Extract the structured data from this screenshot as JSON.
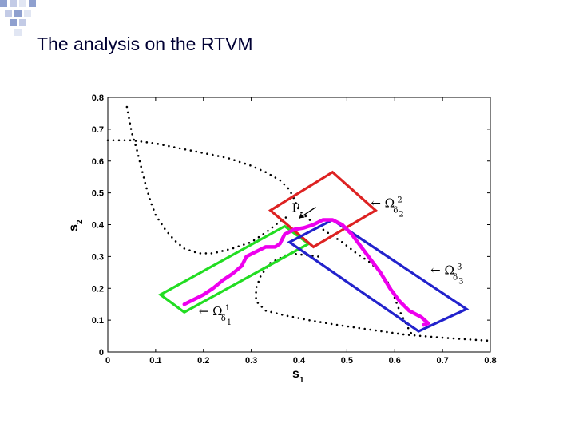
{
  "slide": {
    "title": "The analysis on the RTVM",
    "accent_colors": [
      "#8fa0cf",
      "#c3cbe6",
      "#e1e6f3"
    ]
  },
  "chart_data": {
    "type": "scatter",
    "xlabel": "s",
    "xlabel_sub": "1",
    "ylabel": "s",
    "ylabel_sub": "2",
    "xlim": [
      0,
      0.8
    ],
    "ylim": [
      0,
      0.8
    ],
    "xticks": [
      "0",
      "0.1",
      "0.2",
      "0.3",
      "0.4",
      "0.5",
      "0.6",
      "0.7",
      "0.8"
    ],
    "yticks": [
      "0",
      "0.1",
      "0.2",
      "0.3",
      "0.4",
      "0.5",
      "0.6",
      "0.7",
      "0.8"
    ],
    "grid": false,
    "dotted_curves": [
      {
        "color": "#000000",
        "points": [
          [
            0.04,
            0.77
          ],
          [
            0.045,
            0.73
          ],
          [
            0.05,
            0.69
          ],
          [
            0.06,
            0.64
          ],
          [
            0.07,
            0.58
          ],
          [
            0.08,
            0.52
          ],
          [
            0.09,
            0.47
          ],
          [
            0.1,
            0.43
          ],
          [
            0.12,
            0.385
          ],
          [
            0.14,
            0.35
          ],
          [
            0.16,
            0.325
          ],
          [
            0.19,
            0.31
          ],
          [
            0.22,
            0.31
          ],
          [
            0.26,
            0.325
          ],
          [
            0.3,
            0.345
          ],
          [
            0.33,
            0.375
          ],
          [
            0.36,
            0.41
          ],
          [
            0.38,
            0.43
          ]
        ]
      },
      {
        "color": "#000000",
        "points": [
          [
            0.0,
            0.665
          ],
          [
            0.05,
            0.665
          ],
          [
            0.1,
            0.655
          ],
          [
            0.15,
            0.64
          ],
          [
            0.2,
            0.625
          ],
          [
            0.25,
            0.61
          ],
          [
            0.3,
            0.585
          ],
          [
            0.33,
            0.565
          ],
          [
            0.36,
            0.54
          ],
          [
            0.38,
            0.51
          ],
          [
            0.39,
            0.48
          ],
          [
            0.4,
            0.445
          ],
          [
            0.43,
            0.405
          ],
          [
            0.46,
            0.375
          ],
          [
            0.49,
            0.345
          ],
          [
            0.52,
            0.31
          ],
          [
            0.55,
            0.28
          ],
          [
            0.57,
            0.25
          ],
          [
            0.59,
            0.21
          ],
          [
            0.6,
            0.17
          ],
          [
            0.61,
            0.13
          ],
          [
            0.62,
            0.1
          ],
          [
            0.63,
            0.07
          ],
          [
            0.64,
            0.045
          ]
        ]
      },
      {
        "color": "#000000",
        "points": [
          [
            0.44,
            0.3
          ],
          [
            0.38,
            0.31
          ],
          [
            0.34,
            0.28
          ],
          [
            0.32,
            0.24
          ],
          [
            0.31,
            0.2
          ],
          [
            0.31,
            0.16
          ],
          [
            0.33,
            0.13
          ],
          [
            0.37,
            0.115
          ],
          [
            0.42,
            0.1
          ],
          [
            0.48,
            0.085
          ],
          [
            0.55,
            0.07
          ],
          [
            0.62,
            0.055
          ],
          [
            0.7,
            0.045
          ],
          [
            0.8,
            0.035
          ]
        ]
      }
    ],
    "magenta_trajectory": {
      "color": "#ee00ee",
      "points": [
        [
          0.16,
          0.15
        ],
        [
          0.18,
          0.165
        ],
        [
          0.2,
          0.18
        ],
        [
          0.22,
          0.2
        ],
        [
          0.24,
          0.225
        ],
        [
          0.26,
          0.245
        ],
        [
          0.28,
          0.27
        ],
        [
          0.29,
          0.3
        ],
        [
          0.31,
          0.315
        ],
        [
          0.33,
          0.33
        ],
        [
          0.35,
          0.33
        ],
        [
          0.36,
          0.34
        ],
        [
          0.37,
          0.37
        ],
        [
          0.39,
          0.385
        ],
        [
          0.41,
          0.39
        ],
        [
          0.43,
          0.4
        ],
        [
          0.45,
          0.415
        ],
        [
          0.47,
          0.415
        ],
        [
          0.49,
          0.4
        ],
        [
          0.51,
          0.37
        ],
        [
          0.53,
          0.33
        ],
        [
          0.55,
          0.29
        ],
        [
          0.57,
          0.25
        ],
        [
          0.59,
          0.2
        ],
        [
          0.61,
          0.16
        ],
        [
          0.63,
          0.13
        ],
        [
          0.655,
          0.11
        ],
        [
          0.67,
          0.09
        ],
        [
          0.66,
          0.085
        ]
      ]
    },
    "boxes": [
      {
        "label": "Ω_δ1",
        "color": "#22dd22",
        "corners": [
          [
            0.11,
            0.18
          ],
          [
            0.16,
            0.125
          ],
          [
            0.42,
            0.34
          ],
          [
            0.37,
            0.395
          ]
        ],
        "annotation": {
          "text": "← Ω",
          "sup": "1",
          "sub": "δ",
          "subsub": "1",
          "at": [
            0.19,
            0.115
          ]
        }
      },
      {
        "label": "Ω_δ2",
        "color": "#dd2222",
        "corners": [
          [
            0.34,
            0.445
          ],
          [
            0.47,
            0.565
          ],
          [
            0.56,
            0.445
          ],
          [
            0.43,
            0.33
          ]
        ],
        "annotation": {
          "text": "← Ω",
          "sup": "2",
          "sub": "δ",
          "subsub": "2",
          "at": [
            0.55,
            0.455
          ]
        }
      },
      {
        "label": "Ω_δ3",
        "color": "#2222cc",
        "corners": [
          [
            0.47,
            0.415
          ],
          [
            0.75,
            0.135
          ],
          [
            0.65,
            0.065
          ],
          [
            0.38,
            0.345
          ]
        ],
        "annotation": {
          "text": "← Ω",
          "sup": "3",
          "sub": "δ",
          "subsub": "3",
          "at": [
            0.675,
            0.245
          ]
        }
      }
    ],
    "point_label": {
      "text": "P",
      "arrow_from": [
        0.435,
        0.455
      ],
      "arrow_to": [
        0.4,
        0.42
      ],
      "label_at": [
        0.435,
        0.445
      ]
    }
  }
}
